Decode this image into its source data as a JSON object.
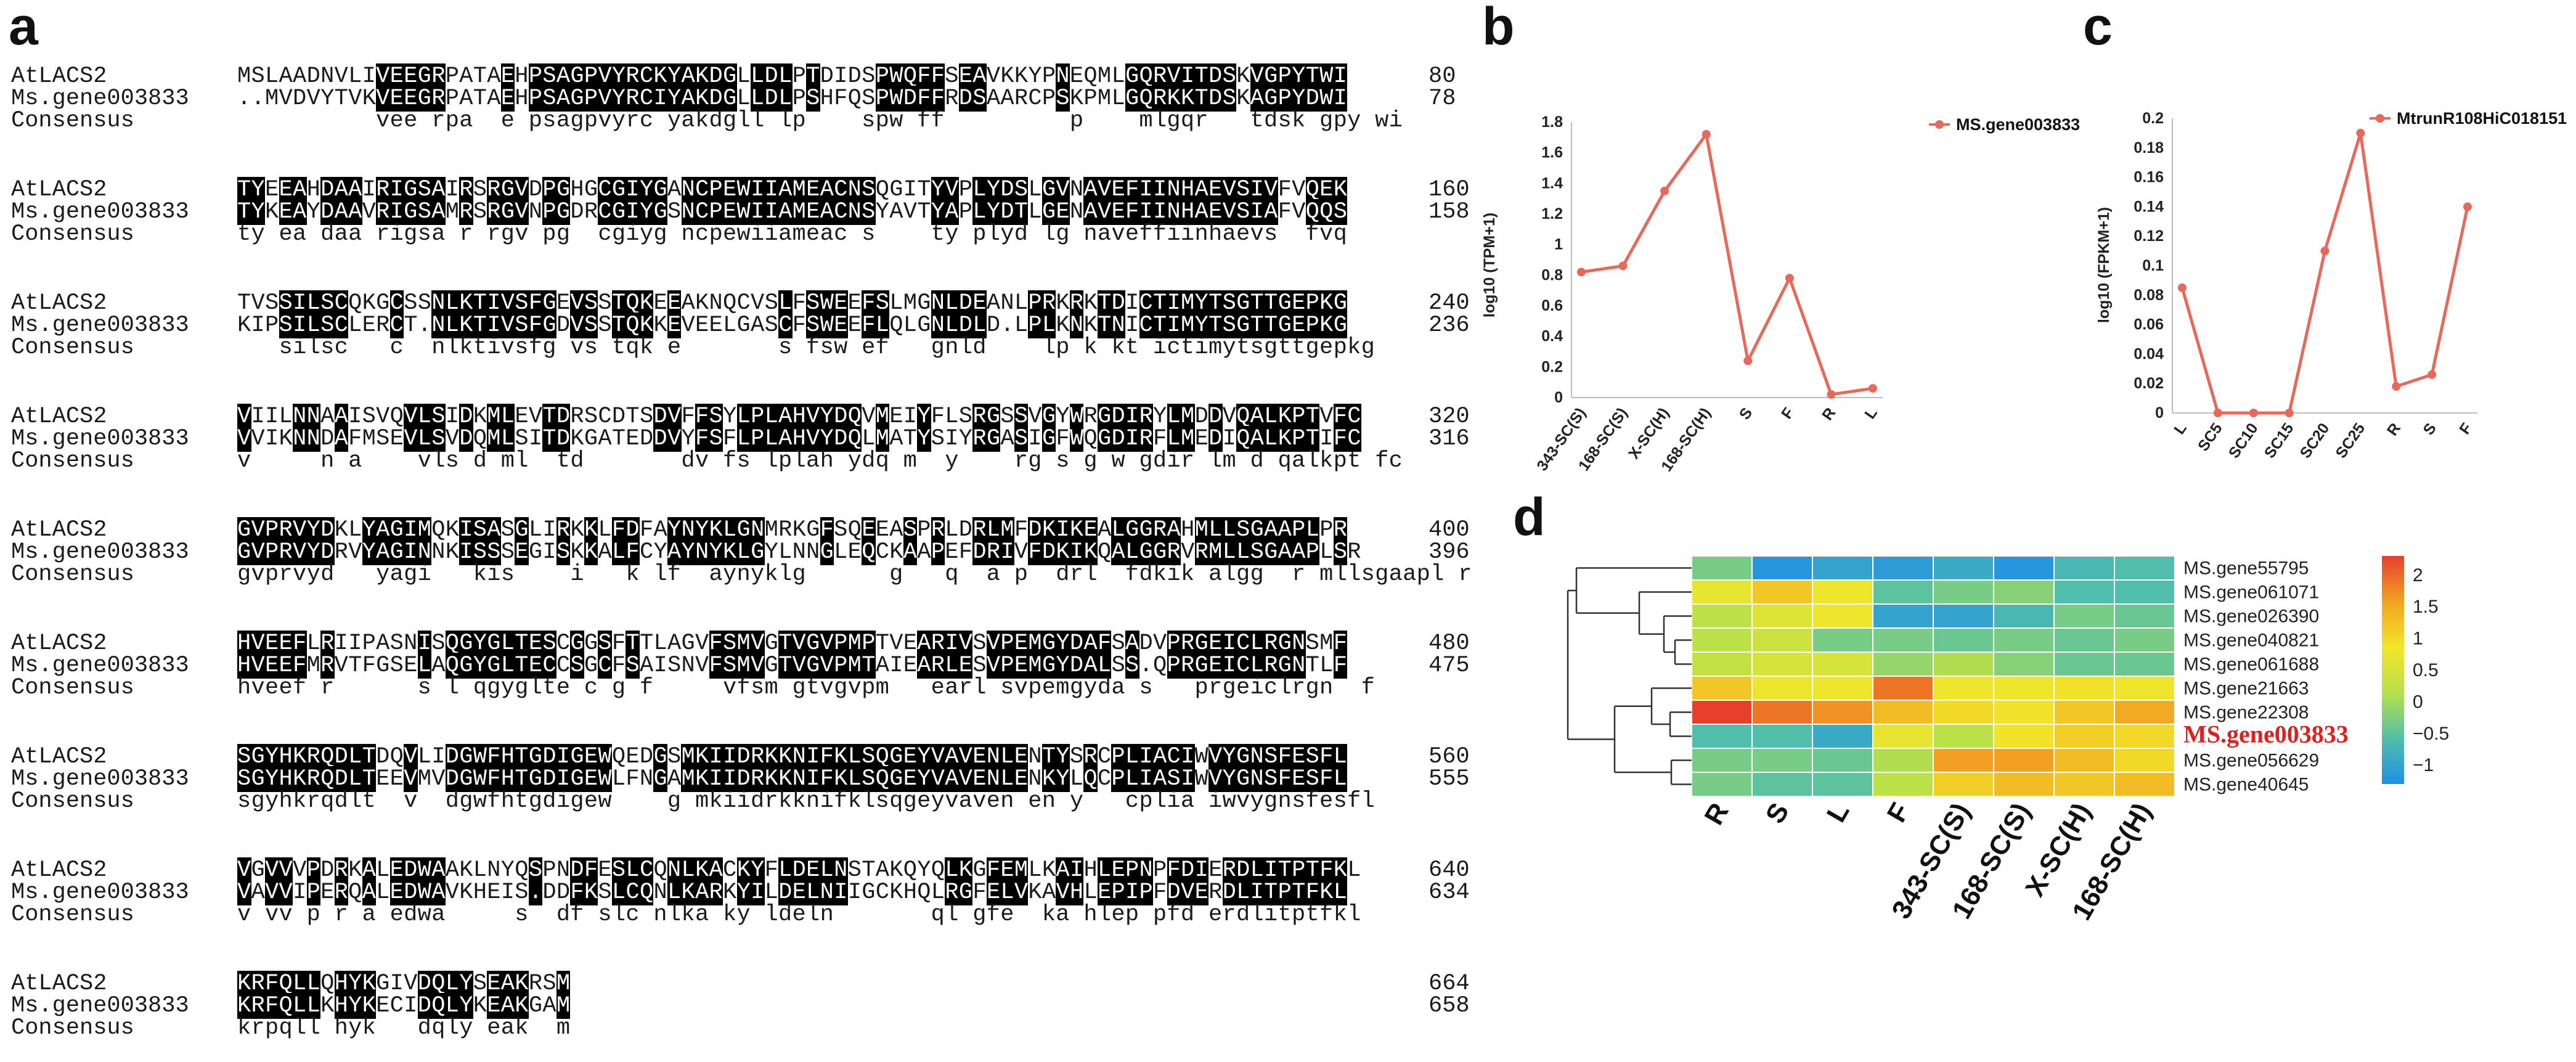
{
  "panels": {
    "a": "a",
    "b": "b",
    "c": "c",
    "d": "d"
  },
  "alignment": {
    "consensus_label": "Consensus",
    "blocks": [
      {
        "s1": {
          "name": "AtLACS2",
          "seq": "MSLAADNVLIVEEGRPATAEHPSAGPVYRCKYAKDGLLDLPTDIDSPWQFFSEAVKKYPNEQMLGQRVITDSKVGPYTWI",
          "num": "80"
        },
        "s2": {
          "name": "Ms.gene003833",
          "seq": "..MVDVYTVKVEEGRPATAEHPSAGPVYRCIYAKDGLLDLPSHFQSPWDFFRDSAARCPSKPMLGQRKKTDSKAGPYDWI",
          "num": "78"
        },
        "cons": "          vee rpa  e psagpvyrc yakdgll lp    spw ff         p    mlgqr   tdsk gpy wi",
        "runs": [
          [
            10,
            15
          ],
          [
            19,
            20
          ],
          [
            21,
            36
          ],
          [
            37,
            40
          ],
          [
            41,
            42
          ],
          [
            46,
            51
          ],
          [
            52,
            54
          ],
          [
            59,
            60
          ],
          [
            64,
            72
          ],
          [
            73,
            80
          ]
        ]
      },
      {
        "s1": {
          "name": "AtLACS2",
          "seq": "TYEEAHDAAIRIGSAIRSRGVDPGHGCGIYGANCPEWIIAMEACNSQGITYVPLYDSLGVNAVEFIINHAEVSIVFVQEK",
          "num": "160"
        },
        "s2": {
          "name": "Ms.gene003833",
          "seq": "TYKEAYDAAVRIGSAMRSRGVNPGDRCGIYGSNCPEWIIAMEACNSYAVTYAPLYDTLGENAVEFIINHAEVSIAFVQQS",
          "num": "158"
        },
        "cons": "ty ea daa rigsa r rgv pg  cgiyg ncpewiiameac s    ty plyd lg naveffiinhaevs  fvq  ",
        "runs": [
          [
            0,
            2
          ],
          [
            3,
            5
          ],
          [
            6,
            9
          ],
          [
            10,
            15
          ],
          [
            16,
            17
          ],
          [
            18,
            21
          ],
          [
            22,
            24
          ],
          [
            26,
            31
          ],
          [
            32,
            46
          ],
          [
            50,
            52
          ],
          [
            53,
            57
          ],
          [
            58,
            60
          ],
          [
            61,
            75
          ],
          [
            77,
            80
          ]
        ]
      },
      {
        "s1": {
          "name": "AtLACS2",
          "seq": "TVSSILSCQKGCSSNLKTIVSFGEVSSTQKEEAKNQCVSLFSWEEFSLMGNLDEANLPRKRKTDICTIMYTSGTTGEPKG",
          "num": "240"
        },
        "s2": {
          "name": "Ms.gene003833",
          "seq": "KIPSILSCLERCT.NLKTIVSFGDVSSTQKKEVEELGASCFSWEEFLQLGNLDLD.LPLKNKTNICTIMYTSGTTGEPKG",
          "num": "236"
        },
        "cons": "   silsc   c  nlktivsfg vs tqk e       s fsw ef   gnld    lp k kt ictimytsgttgepkg",
        "runs": [
          [
            3,
            8
          ],
          [
            11,
            12
          ],
          [
            14,
            23
          ],
          [
            24,
            26
          ],
          [
            27,
            30
          ],
          [
            31,
            32
          ],
          [
            39,
            40
          ],
          [
            41,
            44
          ],
          [
            45,
            47
          ],
          [
            50,
            54
          ],
          [
            57,
            59
          ],
          [
            60,
            61
          ],
          [
            62,
            64
          ],
          [
            65,
            80
          ]
        ]
      },
      {
        "s1": {
          "name": "AtLACS2",
          "seq": "VIILNNAAISVQVLSIDKMLEVTDRSCDTSDVFFSYLPLAHVYDQVMEIYFLSRGSSVGYWRGDIRYLMDDVQALKPTVFC",
          "num": "320"
        },
        "s2": {
          "name": "Ms.gene003833",
          "seq": "VVIKNNDAFMSEVLSVDQMLSITDKGATEDDVYFSFLPLAHVYDQLMATYSIYRGASIGFWQGDIRFLMEDIQALKPTIFC",
          "num": "316"
        },
        "cons": "v     n a    vls d ml  td       dv fs lplah ydq m  y    rg s g w gdir lm d qalkpt fc",
        "runs": [
          [
            0,
            1
          ],
          [
            4,
            6
          ],
          [
            7,
            8
          ],
          [
            12,
            15
          ],
          [
            16,
            17
          ],
          [
            18,
            20
          ],
          [
            22,
            24
          ],
          [
            30,
            32
          ],
          [
            33,
            35
          ],
          [
            36,
            41
          ],
          [
            41,
            45
          ],
          [
            46,
            47
          ],
          [
            49,
            50
          ],
          [
            53,
            55
          ],
          [
            56,
            57
          ],
          [
            58,
            59
          ],
          [
            60,
            61
          ],
          [
            62,
            66
          ],
          [
            67,
            69
          ],
          [
            70,
            71
          ],
          [
            72,
            78
          ],
          [
            79,
            81
          ]
        ]
      },
      {
        "s1": {
          "name": "AtLACS2",
          "seq": "GVPRVYDKLYAGIMQKISASGLIRKKLFDFAYNYKLGNMRKGFSQEEASPRLDRLMFDKIKEALGGRAHMLLSGAAPLPR",
          "num": "400"
        },
        "s2": {
          "name": "Ms.gene003833",
          "seq": "GVPRVYDRVYAGINNKISSSEGISKKALFCYAYNYKLGYLNNGLEQCKAAPEFDRIVFDKIKQALGGRVRMLLSGAAPLSR",
          "num": "396"
        },
        "cons": "gvprvyd   yagi   kis    i   k lf  aynyklg      g   q  a p  drl  fdkik algg  r mllsgaapl r",
        "runs": [
          [
            0,
            7
          ],
          [
            9,
            14
          ],
          [
            16,
            19
          ],
          [
            20,
            21
          ],
          [
            23,
            24
          ],
          [
            25,
            26
          ],
          [
            27,
            29
          ],
          [
            31,
            38
          ],
          [
            42,
            43
          ],
          [
            45,
            46
          ],
          [
            48,
            49
          ],
          [
            50,
            51
          ],
          [
            53,
            56
          ],
          [
            57,
            62
          ],
          [
            63,
            68
          ],
          [
            69,
            71
          ],
          [
            71,
            78
          ],
          [
            79,
            80
          ]
        ]
      },
      {
        "s1": {
          "name": "AtLACS2",
          "seq": "HVEEFLRIIPASNISQGYGLTESCGGSFTTLAGVFSMVGTVGVPMPTVEARIVSVPEMGYDAFSADVPRGEICLRGNSMF",
          "num": "480"
        },
        "s2": {
          "name": "Ms.gene003833",
          "seq": "HVEEFMRVTFGSELAQGYGLTECCSGCFSAISNVFSMVGTVGVPMTAIEARLESVPEMGYDALSS.QPRGEICLRGNTLF",
          "num": "475"
        },
        "cons": "hveef r      s l qgyglte c g f     vfsm gtvgvpm   earl svpemgyda s   prgeiclrgn  f",
        "runs": [
          [
            0,
            5
          ],
          [
            6,
            7
          ],
          [
            13,
            14
          ],
          [
            15,
            16
          ],
          [
            16,
            23
          ],
          [
            24,
            25
          ],
          [
            26,
            27
          ],
          [
            28,
            29
          ],
          [
            34,
            38
          ],
          [
            39,
            46
          ],
          [
            49,
            53
          ],
          [
            54,
            63
          ],
          [
            64,
            65
          ],
          [
            67,
            77
          ],
          [
            79,
            80
          ]
        ]
      },
      {
        "s1": {
          "name": "AtLACS2",
          "seq": "SGYHKRQDLTDQVLIDGWFHTGDIGEWQEDGSMKIIDRKKNIFKLSQGEYVAVENLENTYSRCPLIACIWVYGNSFESFL",
          "num": "560"
        },
        "s2": {
          "name": "Ms.gene003833",
          "seq": "SGYHKRQDLTEEVMVDGWFHTGDIGEWLFNGAMKIIDRKKNIFKLSQGEYVAVENLENKYLQCPLIASIWVYGNSFESFL",
          "num": "555"
        },
        "cons": "sgyhkrqdlt  v  dgwfhtgdigew    g mkiidrkknifklsqgeyvaven en y   cplia iwvygnsfesfl",
        "runs": [
          [
            0,
            10
          ],
          [
            12,
            13
          ],
          [
            15,
            27
          ],
          [
            30,
            31
          ],
          [
            32,
            57
          ],
          [
            58,
            60
          ],
          [
            61,
            62
          ],
          [
            63,
            69
          ],
          [
            70,
            80
          ]
        ]
      },
      {
        "s1": {
          "name": "AtLACS2",
          "seq": "VGVVVPDRKALEDWAAKLNYQSPNDFESLCQNLKACKYFLDELNSTAKQYQLKGFEMLKAIHLEPNPFDIERDLITPTFKL",
          "num": "640"
        },
        "s2": {
          "name": "Ms.gene003833",
          "seq": "VAVVIPERQALEDWAVKHEIS.DDFKSLCQNLKARKYILDELNIIGCKHQLRGFELVKAVHLEPIPFDVERDLITPTFKL",
          "num": "634"
        },
        "cons": "v vv p r a edwa     s  df slc nlka ky ldeln       ql gfe  ka hlep pfd erdlitptfkl",
        "runs": [
          [
            0,
            1
          ],
          [
            2,
            4
          ],
          [
            5,
            6
          ],
          [
            7,
            8
          ],
          [
            9,
            10
          ],
          [
            11,
            15
          ],
          [
            21,
            22
          ],
          [
            24,
            26
          ],
          [
            27,
            30
          ],
          [
            31,
            35
          ],
          [
            36,
            38
          ],
          [
            39,
            44
          ],
          [
            51,
            53
          ],
          [
            54,
            57
          ],
          [
            59,
            61
          ],
          [
            62,
            66
          ],
          [
            67,
            70
          ],
          [
            71,
            80
          ]
        ]
      },
      {
        "s1": {
          "name": "AtLACS2",
          "seq": "KRFQLLQHYKGIVDQLYSEAKRSM",
          "num": "664"
        },
        "s2": {
          "name": "Ms.gene003833",
          "seq": "KRFQLLKHYKECIDQLYKEAKGAM",
          "num": "658"
        },
        "cons": "krpqll hyk   dqly eak  m",
        "runs": [
          [
            0,
            6
          ],
          [
            7,
            10
          ],
          [
            13,
            17
          ],
          [
            18,
            21
          ],
          [
            23,
            24
          ]
        ]
      }
    ]
  },
  "chart_data": [
    {
      "id": "b",
      "type": "line",
      "title": "",
      "xlabel": "",
      "ylabel": "log10 (TPM+1)",
      "categories": [
        "343-SC(S)",
        "168-SC(S)",
        "X-SC(H)",
        "168-SC(H)",
        "S",
        "F",
        "R",
        "L"
      ],
      "series": [
        {
          "name": "MS.gene003833",
          "values": [
            0.82,
            0.86,
            1.35,
            1.72,
            0.24,
            0.78,
            0.02,
            0.06
          ]
        }
      ],
      "ylim": [
        0,
        1.8
      ],
      "yticks": [
        "0",
        "0.2",
        "0.4",
        "0.6",
        "0.8",
        "1",
        "1.2",
        "1.4",
        "1.6",
        "1.8"
      ],
      "color": "#e8685a",
      "legend": "top-right"
    },
    {
      "id": "c",
      "type": "line",
      "title": "",
      "xlabel": "",
      "ylabel": "log10 (FPKM+1)",
      "categories": [
        "L",
        "SC5",
        "SC10",
        "SC15",
        "SC20",
        "SC25",
        "R",
        "S",
        "F"
      ],
      "series": [
        {
          "name": "MtrunR108HiC018151",
          "values": [
            0.085,
            0.0,
            0.0,
            0.0,
            0.11,
            0.19,
            0.018,
            0.026,
            0.14
          ]
        }
      ],
      "ylim": [
        0,
        0.2
      ],
      "yticks": [
        "0",
        "0.02",
        "0.04",
        "0.06",
        "0.08",
        "0.1",
        "0.12",
        "0.14",
        "0.16",
        "0.18",
        "0.2"
      ],
      "color": "#e8685a",
      "legend": "top-right"
    },
    {
      "id": "d",
      "type": "heatmap",
      "title": "",
      "columns": [
        "R",
        "S",
        "L",
        "F",
        "343-SC(S)",
        "168-SC(S)",
        "X-SC(H)",
        "168-SC(H)"
      ],
      "rows": [
        "MS.gene55795",
        "MS.gene061071",
        "MS.gene026390",
        "MS.gene040821",
        "MS.gene061688",
        "MS.gene21663",
        "MS.gene22308",
        "MS.gene003833",
        "MS.gene056629",
        "MS.gene40645"
      ],
      "highlight_row": "MS.gene003833",
      "highlight_color": "#e0201c",
      "values": [
        [
          -0.3,
          -1.2,
          -1.0,
          -1.1,
          -0.9,
          -1.2,
          -0.7,
          -0.6
        ],
        [
          0.7,
          1.2,
          0.8,
          -0.5,
          -0.3,
          -0.2,
          -0.6,
          -0.6
        ],
        [
          0.2,
          0.6,
          0.8,
          -1.0,
          -1.0,
          -0.7,
          -0.3,
          -0.4
        ],
        [
          0.2,
          0.4,
          -0.3,
          -0.3,
          -0.4,
          -0.3,
          -0.4,
          -0.3
        ],
        [
          0.3,
          0.5,
          0.5,
          -0.1,
          0.1,
          -0.2,
          -0.4,
          -0.4
        ],
        [
          1.2,
          0.8,
          0.8,
          1.9,
          0.8,
          0.8,
          0.9,
          0.8
        ],
        [
          2.3,
          1.9,
          1.7,
          1.3,
          1.0,
          0.9,
          1.2,
          1.5
        ],
        [
          -0.6,
          -0.6,
          -0.9,
          0.7,
          0.2,
          0.9,
          1.1,
          1.0
        ],
        [
          -0.3,
          -0.3,
          -0.4,
          0.1,
          1.6,
          1.6,
          1.3,
          1.0
        ],
        [
          -0.3,
          -0.5,
          -0.5,
          0.2,
          1.1,
          1.3,
          1.2,
          1.3
        ]
      ],
      "colorbar_ticks": [
        "2",
        "1.5",
        "1",
        "0.5",
        "0",
        "−0.5",
        "−1"
      ],
      "colorbar_range": [
        -1.3,
        2.3
      ],
      "colors": [
        "#1f8fe6",
        "#52bfa9",
        "#b7e04c",
        "#f2e62a",
        "#f2a222",
        "#e6402c"
      ]
    }
  ]
}
